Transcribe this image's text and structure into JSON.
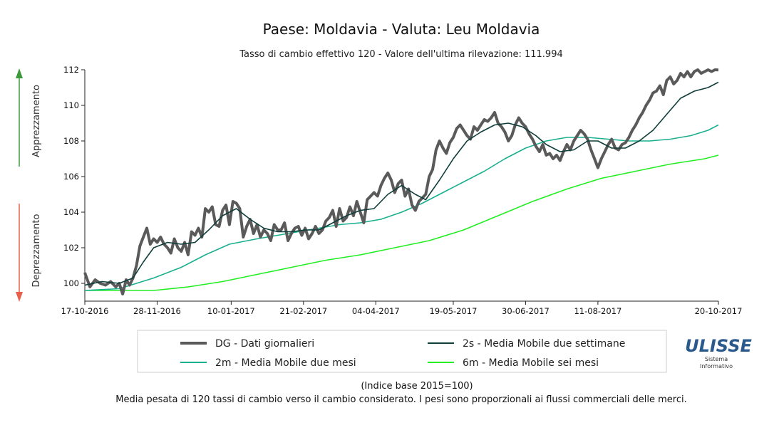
{
  "chart_data": {
    "type": "line",
    "title": "Paese: Moldavia - Valuta: Leu Moldavia",
    "subtitle": "Tasso di cambio effettivo 120 - Valore dell'ultima rilevazione: 111.994",
    "xlabel": "",
    "ylabel": "",
    "xlim": [
      "17-10-2016",
      "20-10-2017"
    ],
    "ylim": [
      99,
      112
    ],
    "y_ticks": [
      100,
      102,
      104,
      106,
      108,
      110,
      112
    ],
    "x_ticks": [
      "17-10-2016",
      "28-11-2016",
      "10-01-2017",
      "21-02-2017",
      "04-04-2017",
      "19-05-2017",
      "30-06-2017",
      "11-08-2017",
      "20-10-2017"
    ],
    "x_tick_days": [
      0,
      42,
      85,
      127,
      169,
      214,
      256,
      298,
      368
    ],
    "grid": false,
    "legend_position": "bottom",
    "side_labels": {
      "up": "Apprezzamento",
      "down": "Deprezzamento"
    },
    "series": [
      {
        "name": "DG - Dati giornalieri",
        "color": "#5a5a5a",
        "points": [
          [
            0,
            100.6
          ],
          [
            3,
            99.8
          ],
          [
            6,
            100.2
          ],
          [
            9,
            100.0
          ],
          [
            12,
            99.9
          ],
          [
            15,
            100.1
          ],
          [
            18,
            99.8
          ],
          [
            20,
            100.0
          ],
          [
            22,
            99.4
          ],
          [
            24,
            100.2
          ],
          [
            26,
            99.9
          ],
          [
            28,
            100.3
          ],
          [
            30,
            101.0
          ],
          [
            32,
            102.1
          ],
          [
            34,
            102.6
          ],
          [
            36,
            103.1
          ],
          [
            38,
            102.2
          ],
          [
            40,
            102.5
          ],
          [
            42,
            102.3
          ],
          [
            44,
            102.6
          ],
          [
            46,
            102.2
          ],
          [
            48,
            102.0
          ],
          [
            50,
            101.7
          ],
          [
            52,
            102.5
          ],
          [
            54,
            102.0
          ],
          [
            56,
            101.8
          ],
          [
            58,
            102.3
          ],
          [
            60,
            101.6
          ],
          [
            62,
            102.9
          ],
          [
            64,
            102.7
          ],
          [
            66,
            103.1
          ],
          [
            68,
            102.6
          ],
          [
            70,
            104.2
          ],
          [
            72,
            104.0
          ],
          [
            74,
            104.3
          ],
          [
            76,
            103.3
          ],
          [
            78,
            103.2
          ],
          [
            80,
            104.1
          ],
          [
            82,
            104.4
          ],
          [
            84,
            103.3
          ],
          [
            86,
            104.6
          ],
          [
            88,
            104.5
          ],
          [
            90,
            104.2
          ],
          [
            92,
            102.6
          ],
          [
            94,
            103.2
          ],
          [
            96,
            103.6
          ],
          [
            98,
            102.8
          ],
          [
            100,
            103.3
          ],
          [
            102,
            102.6
          ],
          [
            104,
            103.0
          ],
          [
            106,
            102.8
          ],
          [
            108,
            102.4
          ],
          [
            110,
            103.3
          ],
          [
            112,
            103.0
          ],
          [
            114,
            103.0
          ],
          [
            116,
            103.4
          ],
          [
            118,
            102.4
          ],
          [
            120,
            102.8
          ],
          [
            122,
            103.1
          ],
          [
            124,
            103.2
          ],
          [
            126,
            102.7
          ],
          [
            128,
            103.1
          ],
          [
            130,
            102.5
          ],
          [
            132,
            102.8
          ],
          [
            134,
            103.2
          ],
          [
            136,
            102.8
          ],
          [
            138,
            103.0
          ],
          [
            140,
            103.5
          ],
          [
            142,
            103.7
          ],
          [
            144,
            104.1
          ],
          [
            146,
            103.2
          ],
          [
            148,
            104.2
          ],
          [
            150,
            103.5
          ],
          [
            152,
            103.7
          ],
          [
            154,
            104.3
          ],
          [
            156,
            103.8
          ],
          [
            158,
            104.6
          ],
          [
            160,
            104.0
          ],
          [
            162,
            103.4
          ],
          [
            164,
            104.7
          ],
          [
            166,
            104.9
          ],
          [
            168,
            105.1
          ],
          [
            170,
            104.9
          ],
          [
            172,
            105.5
          ],
          [
            174,
            105.9
          ],
          [
            176,
            106.2
          ],
          [
            178,
            105.8
          ],
          [
            180,
            105.1
          ],
          [
            182,
            105.6
          ],
          [
            184,
            105.8
          ],
          [
            186,
            104.9
          ],
          [
            188,
            105.3
          ],
          [
            190,
            104.4
          ],
          [
            192,
            104.1
          ],
          [
            194,
            104.6
          ],
          [
            196,
            104.8
          ],
          [
            198,
            105.0
          ],
          [
            200,
            106.0
          ],
          [
            202,
            106.4
          ],
          [
            204,
            107.5
          ],
          [
            206,
            108.0
          ],
          [
            208,
            107.6
          ],
          [
            210,
            107.3
          ],
          [
            212,
            107.9
          ],
          [
            214,
            108.2
          ],
          [
            216,
            108.7
          ],
          [
            218,
            108.9
          ],
          [
            220,
            108.6
          ],
          [
            222,
            108.3
          ],
          [
            224,
            108.1
          ],
          [
            226,
            108.8
          ],
          [
            228,
            108.6
          ],
          [
            230,
            108.9
          ],
          [
            232,
            109.2
          ],
          [
            234,
            109.1
          ],
          [
            236,
            109.3
          ],
          [
            238,
            109.6
          ],
          [
            240,
            109.0
          ],
          [
            242,
            108.8
          ],
          [
            244,
            108.5
          ],
          [
            246,
            108.0
          ],
          [
            248,
            108.3
          ],
          [
            250,
            108.9
          ],
          [
            252,
            109.3
          ],
          [
            254,
            109.0
          ],
          [
            256,
            108.8
          ],
          [
            258,
            108.4
          ],
          [
            260,
            108.1
          ],
          [
            262,
            107.7
          ],
          [
            264,
            107.4
          ],
          [
            266,
            107.8
          ],
          [
            268,
            107.2
          ],
          [
            270,
            107.3
          ],
          [
            272,
            107.0
          ],
          [
            274,
            107.2
          ],
          [
            276,
            106.9
          ],
          [
            278,
            107.4
          ],
          [
            280,
            107.8
          ],
          [
            282,
            107.5
          ],
          [
            284,
            108.0
          ],
          [
            286,
            108.3
          ],
          [
            288,
            108.6
          ],
          [
            290,
            108.4
          ],
          [
            292,
            108.1
          ],
          [
            294,
            107.5
          ],
          [
            296,
            107.0
          ],
          [
            298,
            106.5
          ],
          [
            300,
            107.0
          ],
          [
            302,
            107.4
          ],
          [
            304,
            107.8
          ],
          [
            306,
            108.1
          ],
          [
            308,
            107.6
          ],
          [
            310,
            107.5
          ],
          [
            312,
            107.8
          ],
          [
            314,
            107.9
          ],
          [
            316,
            108.2
          ],
          [
            318,
            108.6
          ],
          [
            320,
            108.9
          ],
          [
            322,
            109.3
          ],
          [
            324,
            109.6
          ],
          [
            326,
            110.0
          ],
          [
            328,
            110.3
          ],
          [
            330,
            110.7
          ],
          [
            332,
            110.8
          ],
          [
            334,
            111.1
          ],
          [
            336,
            110.6
          ],
          [
            338,
            111.4
          ],
          [
            340,
            111.6
          ],
          [
            342,
            111.2
          ],
          [
            344,
            111.4
          ],
          [
            346,
            111.8
          ],
          [
            348,
            111.6
          ],
          [
            350,
            111.9
          ],
          [
            352,
            111.6
          ],
          [
            354,
            111.9
          ],
          [
            356,
            112.0
          ],
          [
            358,
            111.8
          ],
          [
            360,
            111.9
          ],
          [
            362,
            112.0
          ],
          [
            364,
            111.9
          ],
          [
            366,
            112.0
          ],
          [
            368,
            111.994
          ]
        ]
      },
      {
        "name": "2s - Media Mobile due settimane",
        "color": "#0f3d3a",
        "points": [
          [
            0,
            99.9
          ],
          [
            10,
            100.1
          ],
          [
            20,
            100.0
          ],
          [
            28,
            100.3
          ],
          [
            34,
            101.2
          ],
          [
            40,
            102.0
          ],
          [
            48,
            102.3
          ],
          [
            56,
            102.2
          ],
          [
            64,
            102.3
          ],
          [
            72,
            103.0
          ],
          [
            80,
            103.8
          ],
          [
            88,
            104.2
          ],
          [
            96,
            103.6
          ],
          [
            104,
            103.1
          ],
          [
            112,
            102.9
          ],
          [
            120,
            102.9
          ],
          [
            128,
            103.0
          ],
          [
            136,
            103.0
          ],
          [
            144,
            103.4
          ],
          [
            152,
            103.8
          ],
          [
            160,
            104.1
          ],
          [
            168,
            104.2
          ],
          [
            176,
            105.0
          ],
          [
            184,
            105.5
          ],
          [
            192,
            105.0
          ],
          [
            198,
            104.7
          ],
          [
            206,
            105.8
          ],
          [
            214,
            107.0
          ],
          [
            222,
            108.0
          ],
          [
            230,
            108.5
          ],
          [
            238,
            108.9
          ],
          [
            246,
            109.0
          ],
          [
            254,
            108.8
          ],
          [
            262,
            108.3
          ],
          [
            268,
            107.8
          ],
          [
            276,
            107.4
          ],
          [
            284,
            107.5
          ],
          [
            292,
            108.0
          ],
          [
            298,
            108.0
          ],
          [
            306,
            107.6
          ],
          [
            314,
            107.6
          ],
          [
            322,
            108.0
          ],
          [
            330,
            108.6
          ],
          [
            338,
            109.5
          ],
          [
            346,
            110.4
          ],
          [
            354,
            110.8
          ],
          [
            362,
            111.0
          ],
          [
            368,
            111.3
          ]
        ]
      },
      {
        "name": "2m - Media Mobile due mesi",
        "color": "#1aaf8f",
        "points": [
          [
            0,
            99.6
          ],
          [
            20,
            99.7
          ],
          [
            40,
            100.3
          ],
          [
            56,
            100.9
          ],
          [
            70,
            101.6
          ],
          [
            84,
            102.2
          ],
          [
            100,
            102.5
          ],
          [
            112,
            102.7
          ],
          [
            124,
            102.9
          ],
          [
            136,
            103.1
          ],
          [
            148,
            103.3
          ],
          [
            160,
            103.4
          ],
          [
            172,
            103.6
          ],
          [
            184,
            104.0
          ],
          [
            196,
            104.5
          ],
          [
            208,
            105.1
          ],
          [
            220,
            105.7
          ],
          [
            232,
            106.3
          ],
          [
            244,
            107.0
          ],
          [
            256,
            107.6
          ],
          [
            268,
            108.0
          ],
          [
            280,
            108.2
          ],
          [
            292,
            108.2
          ],
          [
            304,
            108.1
          ],
          [
            316,
            108.0
          ],
          [
            328,
            108.0
          ],
          [
            340,
            108.1
          ],
          [
            352,
            108.3
          ],
          [
            362,
            108.6
          ],
          [
            368,
            108.9
          ]
        ]
      },
      {
        "name": "6m - Media Mobile sei mesi",
        "color": "#22ee22",
        "points": [
          [
            0,
            99.6
          ],
          [
            20,
            99.6
          ],
          [
            40,
            99.6
          ],
          [
            60,
            99.8
          ],
          [
            80,
            100.1
          ],
          [
            100,
            100.5
          ],
          [
            120,
            100.9
          ],
          [
            140,
            101.3
          ],
          [
            160,
            101.6
          ],
          [
            180,
            102.0
          ],
          [
            200,
            102.4
          ],
          [
            220,
            103.0
          ],
          [
            240,
            103.8
          ],
          [
            260,
            104.6
          ],
          [
            280,
            105.3
          ],
          [
            300,
            105.9
          ],
          [
            320,
            106.3
          ],
          [
            340,
            106.7
          ],
          [
            360,
            107.0
          ],
          [
            368,
            107.2
          ]
        ]
      }
    ],
    "footnote_1": "(Indice base 2015=100)",
    "footnote_2": "Media pesata di 120 tassi di cambio verso il cambio considerato. I pesi sono proporzionali ai flussi commerciali delle merci.",
    "logo": {
      "name": "ULISSE",
      "line1": "Sistema",
      "line2": "Informativo"
    }
  }
}
